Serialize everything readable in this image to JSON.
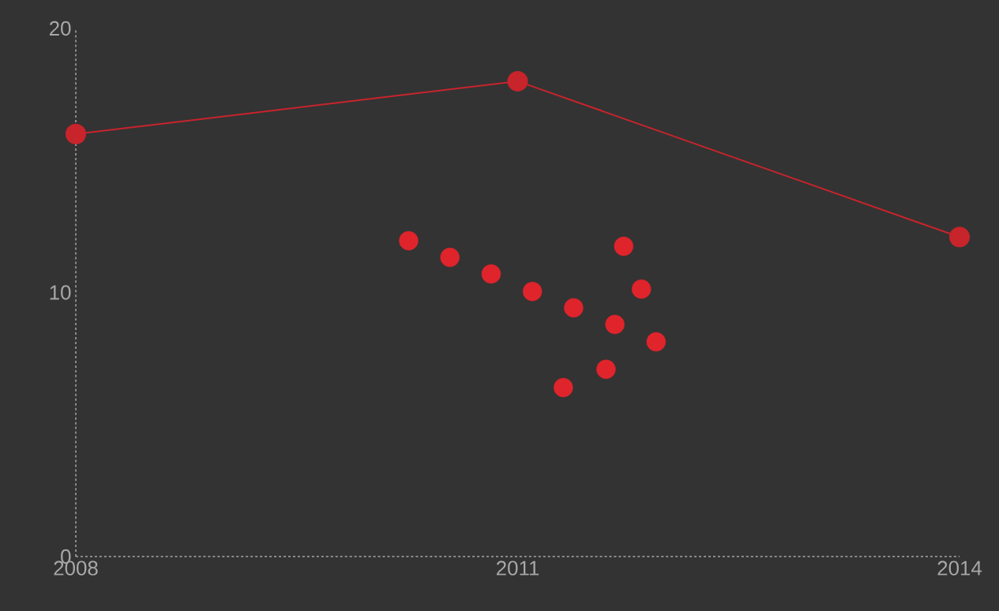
{
  "chart_data": {
    "type": "line",
    "xlim": [
      2008,
      2014
    ],
    "ylim": [
      0,
      20
    ],
    "xticks": [
      2008,
      2011,
      2014
    ],
    "yticks": [
      0,
      10,
      20
    ],
    "marker": "circle",
    "line_style": "solid",
    "series": [
      {
        "color": "#c8242c",
        "x": [
          2008,
          2011,
          2014
        ],
        "values": [
          16.0,
          18.0,
          12.1
        ]
      },
      {
        "type": "scatter",
        "color": "#e0242c",
        "x": [
          2010.26,
          2010.54,
          2010.82,
          2011.1,
          2011.38,
          2011.66,
          2011.94,
          2011.31,
          2011.6,
          2011.84,
          2011.72
        ],
        "values": [
          11.96,
          11.33,
          10.7,
          10.04,
          9.42,
          8.79,
          8.13,
          6.4,
          7.09,
          10.13,
          11.75
        ]
      }
    ]
  }
}
